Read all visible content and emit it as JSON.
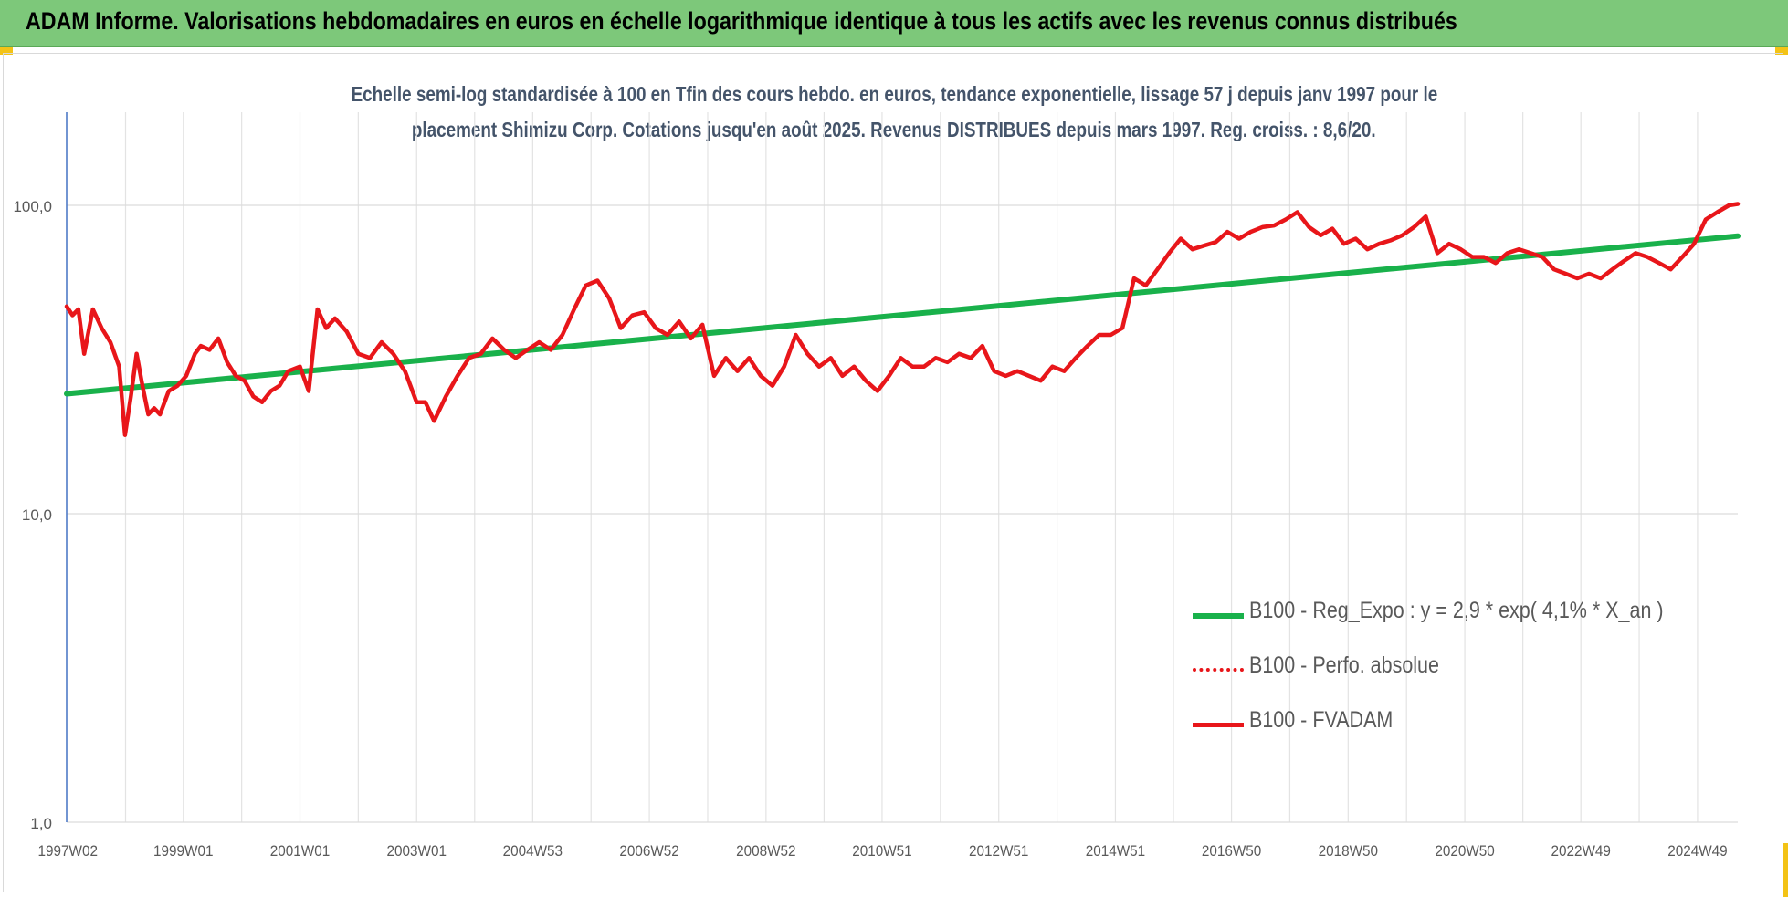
{
  "header": {
    "banner_title": "ADAM Informe. Valorisations hebdomadaires en euros en échelle logarithmique identique à tous les actifs avec les revenus connus distribués"
  },
  "colors": {
    "banner_bg": "#7dc87a",
    "corner_accent": "#f3c316",
    "trend_green": "#19b14b",
    "fvadam_red": "#e8161a",
    "title_text": "#44546a",
    "axis_text": "#595959"
  },
  "chart_data": {
    "type": "line",
    "title_line1": "Echelle semi-log standardisée à 100 en Tfin des cours hebdo. en euros, tendance exponentielle, lissage 57 j depuis janv 1997 pour le",
    "title_line2": "placement Shimizu Corp. Cotations jusqu'en août 2025. Revenus DISTRIBUES depuis mars 1997. Reg. croiss. : 8,6/20.",
    "y_scale": "log",
    "ylim": [
      1,
      200
    ],
    "y_ticks": [
      1,
      10,
      100
    ],
    "y_tick_labels": [
      "1,0",
      "10,0",
      "100,0"
    ],
    "x_range": [
      1997.0,
      2025.65
    ],
    "x_ticks": [
      1997.02,
      1999.0,
      2001.0,
      2003.0,
      2004.99,
      2006.99,
      2008.99,
      2010.98,
      2012.98,
      2014.98,
      2016.97,
      2018.97,
      2020.97,
      2022.96,
      2024.96
    ],
    "x_tick_labels": [
      "1997W02",
      "1999W01",
      "2001W01",
      "2003W01",
      "2004W53",
      "2006W52",
      "2008W52",
      "2010W51",
      "2012W51",
      "2014W51",
      "2016W50",
      "2018W50",
      "2020W50",
      "2022W49",
      "2024W49"
    ],
    "grid": {
      "vertical": true,
      "horizontal": true
    },
    "legend_position": "lower-right",
    "series": [
      {
        "name": "B100 - Reg_Expo : y = 2,9 * exp( 4,1% *  X_an )",
        "style": "solid-green",
        "x": [
          1997.0,
          2025.65
        ],
        "y": [
          24.5,
          79.5
        ]
      },
      {
        "name": "B100 - Perfo. absolue",
        "style": "dotted-red",
        "x": [],
        "y": []
      },
      {
        "name": "B100 - FVADAM",
        "style": "solid-red",
        "x": [
          1997.0,
          1997.1,
          1997.2,
          1997.3,
          1997.45,
          1997.6,
          1997.75,
          1997.9,
          1998.0,
          1998.1,
          1998.2,
          1998.3,
          1998.4,
          1998.5,
          1998.6,
          1998.75,
          1998.9,
          1999.05,
          1999.2,
          1999.3,
          1999.45,
          1999.6,
          1999.75,
          1999.9,
          2000.05,
          2000.2,
          2000.35,
          2000.5,
          2000.65,
          2000.8,
          2001.0,
          2001.15,
          2001.3,
          2001.45,
          2001.6,
          2001.8,
          2002.0,
          2002.2,
          2002.4,
          2002.6,
          2002.8,
          2003.0,
          2003.15,
          2003.3,
          2003.5,
          2003.7,
          2003.9,
          2004.1,
          2004.3,
          2004.5,
          2004.7,
          2004.9,
          2005.1,
          2005.3,
          2005.5,
          2005.7,
          2005.9,
          2006.1,
          2006.3,
          2006.5,
          2006.7,
          2006.9,
          2007.1,
          2007.3,
          2007.5,
          2007.7,
          2007.9,
          2008.1,
          2008.3,
          2008.5,
          2008.7,
          2008.9,
          2009.1,
          2009.3,
          2009.5,
          2009.7,
          2009.9,
          2010.1,
          2010.3,
          2010.5,
          2010.7,
          2010.9,
          2011.1,
          2011.3,
          2011.5,
          2011.7,
          2011.9,
          2012.1,
          2012.3,
          2012.5,
          2012.7,
          2012.9,
          2013.1,
          2013.3,
          2013.5,
          2013.7,
          2013.9,
          2014.1,
          2014.3,
          2014.5,
          2014.7,
          2014.9,
          2015.1,
          2015.3,
          2015.5,
          2015.7,
          2015.9,
          2016.1,
          2016.3,
          2016.5,
          2016.7,
          2016.9,
          2017.1,
          2017.3,
          2017.5,
          2017.7,
          2017.9,
          2018.1,
          2018.3,
          2018.5,
          2018.7,
          2018.9,
          2019.1,
          2019.3,
          2019.5,
          2019.7,
          2019.9,
          2020.1,
          2020.3,
          2020.5,
          2020.7,
          2020.9,
          2021.1,
          2021.3,
          2021.5,
          2021.7,
          2021.9,
          2022.1,
          2022.3,
          2022.5,
          2022.7,
          2022.9,
          2023.1,
          2023.3,
          2023.5,
          2023.7,
          2023.9,
          2024.1,
          2024.3,
          2024.5,
          2024.7,
          2024.9,
          2025.1,
          2025.3,
          2025.5,
          2025.65
        ],
        "y": [
          47,
          44,
          46,
          33,
          46,
          40,
          36,
          30,
          18,
          24,
          33,
          26,
          21,
          22,
          21,
          25,
          26,
          28,
          33,
          35,
          34,
          37,
          31,
          28,
          27,
          24,
          23,
          25,
          26,
          29,
          30,
          25,
          46,
          40,
          43,
          39,
          33,
          32,
          36,
          33,
          29,
          23,
          23,
          20,
          24,
          28,
          32,
          33,
          37,
          34,
          32,
          34,
          36,
          34,
          38,
          46,
          55,
          57,
          50,
          40,
          44,
          45,
          40,
          38,
          42,
          37,
          41,
          28,
          32,
          29,
          32,
          28,
          26,
          30,
          38,
          33,
          30,
          32,
          28,
          30,
          27,
          25,
          28,
          32,
          30,
          30,
          32,
          31,
          33,
          32,
          35,
          29,
          28,
          29,
          28,
          27,
          30,
          29,
          32,
          35,
          38,
          38,
          40,
          58,
          55,
          62,
          70,
          78,
          72,
          74,
          76,
          82,
          78,
          82,
          85,
          86,
          90,
          95,
          85,
          80,
          84,
          75,
          78,
          72,
          75,
          77,
          80,
          85,
          92,
          70,
          75,
          72,
          68,
          68,
          65,
          70,
          72,
          70,
          68,
          62,
          60,
          58,
          60,
          58,
          62,
          66,
          70,
          68,
          65,
          62,
          68,
          75,
          90,
          95,
          100,
          101
        ]
      }
    ]
  }
}
